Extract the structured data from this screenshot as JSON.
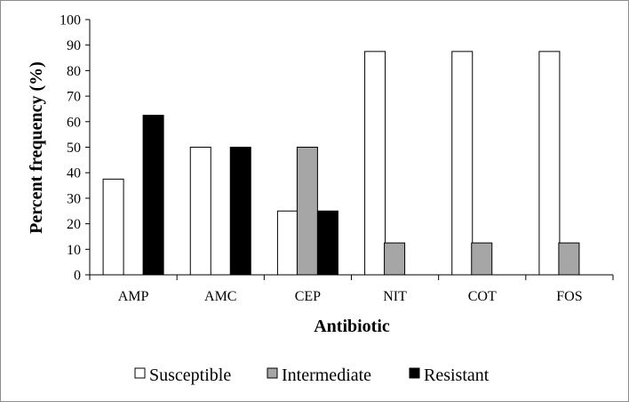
{
  "chart_data": {
    "type": "bar",
    "title": "",
    "xlabel": "Antibiotic",
    "ylabel": "Percent frequency (%)",
    "ylim": [
      0,
      100
    ],
    "ytick_step": 10,
    "categories": [
      "AMP",
      "AMC",
      "CEP",
      "NIT",
      "COT",
      "FOS"
    ],
    "series": [
      {
        "name": "Susceptible",
        "color": "#ffffff",
        "values": [
          37.5,
          50,
          25,
          87.5,
          87.5,
          87.5
        ]
      },
      {
        "name": "Intermediate",
        "color": "#a6a6a6",
        "values": [
          0,
          0,
          50,
          12.5,
          12.5,
          12.5
        ]
      },
      {
        "name": "Resistant",
        "color": "#000000",
        "values": [
          62.5,
          50,
          25,
          0,
          0,
          0
        ]
      }
    ],
    "legend_position": "bottom",
    "grid": false
  }
}
